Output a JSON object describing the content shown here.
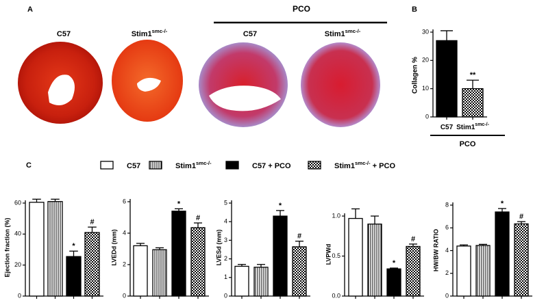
{
  "panel_labels": [
    "A",
    "B",
    "C"
  ],
  "panel_a": {
    "group_label": "PCO",
    "labels": [
      {
        "text": "C57"
      },
      {
        "text": "Stim1",
        "sup": "smc-/-"
      },
      {
        "text": "C57"
      },
      {
        "text": "Stim1",
        "sup": "smc-/-"
      }
    ]
  },
  "legend": [
    {
      "text": "C57",
      "fill": "white"
    },
    {
      "text": "Stim1",
      "sup": "smc-/-",
      "fill": "stripes"
    },
    {
      "text": "C57 + PCO",
      "fill": "black"
    },
    {
      "text": "Stim1",
      "sup": "smc-/-",
      "after": " + PCO",
      "fill": "checker"
    }
  ],
  "chart_data": [
    {
      "type": "bar",
      "ylabel": "Collagen %",
      "group_label": "PCO",
      "categories": [
        {
          "text": "C57"
        },
        {
          "text": "Stim1",
          "sup": "smc-/-"
        }
      ],
      "values": [
        27,
        10
      ],
      "errors": [
        3.5,
        3
      ],
      "fills": [
        "black",
        "checker"
      ],
      "annotations": [
        null,
        "**"
      ],
      "ylim": [
        0,
        30
      ],
      "yticks": [
        0,
        10,
        20,
        30
      ]
    },
    {
      "type": "bar",
      "ylabel": "Ejection  fraction (%)",
      "categories": [
        null,
        null,
        null,
        null
      ],
      "values": [
        60.5,
        61,
        25.5,
        41
      ],
      "errors": [
        2,
        1.5,
        3.5,
        3.5
      ],
      "fills": [
        "white",
        "stripes",
        "black",
        "checker"
      ],
      "annotations": [
        null,
        null,
        "*",
        "#"
      ],
      "ylim": [
        0,
        60
      ],
      "yticks": [
        0,
        20,
        40,
        60
      ]
    },
    {
      "type": "bar",
      "ylabel": "LVEDd (mm)",
      "categories": [
        null,
        null,
        null,
        null
      ],
      "values": [
        3.2,
        2.95,
        5.4,
        4.35
      ],
      "errors": [
        0.15,
        0.12,
        0.15,
        0.3
      ],
      "fills": [
        "white",
        "stripes",
        "black",
        "checker"
      ],
      "annotations": [
        null,
        null,
        "*",
        "#"
      ],
      "ylim": [
        0,
        6
      ],
      "yticks": [
        0,
        2,
        4,
        6
      ]
    },
    {
      "type": "bar",
      "ylabel": "LVESd (mm)",
      "categories": [
        null,
        null,
        null,
        null
      ],
      "values": [
        1.6,
        1.55,
        4.3,
        2.65
      ],
      "errors": [
        0.1,
        0.15,
        0.3,
        0.3
      ],
      "fills": [
        "white",
        "stripes",
        "black",
        "checker"
      ],
      "annotations": [
        null,
        null,
        "*",
        "#"
      ],
      "ylim": [
        0,
        5
      ],
      "yticks": [
        0,
        1,
        2,
        3,
        4,
        5
      ]
    },
    {
      "type": "bar",
      "ylabel": "LVPWd",
      "categories": [
        null,
        null,
        null,
        null
      ],
      "values": [
        0.97,
        0.9,
        0.34,
        0.62
      ],
      "errors": [
        0.12,
        0.1,
        0.01,
        0.03
      ],
      "fills": [
        "white",
        "stripes",
        "black",
        "checker"
      ],
      "annotations": [
        null,
        null,
        "*",
        "#"
      ],
      "ylim": [
        0,
        1
      ],
      "yticks": [
        {
          "value": 0,
          "label": "0.0"
        },
        0.5,
        {
          "value": 1,
          "label": "1.0"
        }
      ]
    },
    {
      "type": "bar",
      "ylabel": "HW/BW RATIO",
      "categories": [
        null,
        null,
        null,
        null
      ],
      "values": [
        4.4,
        4.45,
        7.4,
        6.35
      ],
      "errors": [
        0.1,
        0.1,
        0.3,
        0.2
      ],
      "fills": [
        "white",
        "stripes",
        "black",
        "checker"
      ],
      "annotations": [
        null,
        null,
        "*",
        "#"
      ],
      "ylim": [
        0,
        8
      ],
      "yticks": [
        0,
        2,
        4,
        6,
        8
      ]
    }
  ]
}
